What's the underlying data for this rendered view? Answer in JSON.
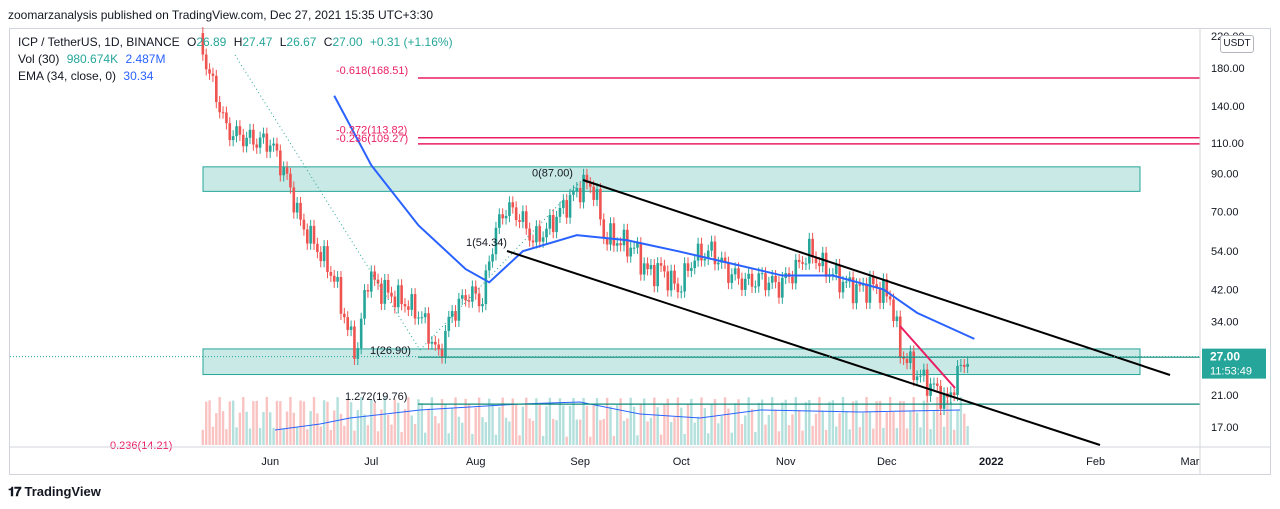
{
  "publisher": "zoomarzanalysis published on TradingView.com, Dec 27, 2021 15:35 UTC+3:30",
  "legend": {
    "symbol": "ICP / TetherUS, 1D, BINANCE",
    "ohlc": {
      "o_label": "O",
      "o": "26.89",
      "h_label": "H",
      "h": "27.47",
      "l_label": "L",
      "l": "26.67",
      "c_label": "C",
      "c": "27.00",
      "chg": "+0.31 (+1.16%)"
    },
    "vol_label": "Vol (30)",
    "vol1": "980.674K",
    "vol2": "2.487M",
    "ema_label": "EMA (34, close, 0)",
    "ema": "30.34"
  },
  "currency": "USDT",
  "price_axis": {
    "ticks": [
      "180.00",
      "140.00",
      "110.00",
      "90.00",
      "70.00",
      "54.00",
      "42.00",
      "34.00",
      "21.00",
      "17.00"
    ],
    "top_label": "220.00",
    "last_price": "27.00",
    "countdown": "11:53:49"
  },
  "time_axis": [
    "Jun",
    "Jul",
    "Aug",
    "Sep",
    "Oct",
    "Nov",
    "Dec",
    "2022",
    "Feb",
    "Mar"
  ],
  "fib_labels": [
    "-0.618(168.51)",
    "-0.272(113.82)",
    "-0.236(109.27)",
    "0(87.00)",
    "1(54.34)",
    "1(26.90)",
    "1.272(19.76)",
    "0.236(14.21)"
  ],
  "colors": {
    "up": "#26a69a",
    "down": "#ef5350",
    "ema": "#2962ff",
    "fib": "#e91e63",
    "zone": "#26a69a",
    "channel": "#000000"
  },
  "footer": "TradingView",
  "chart_data": {
    "type": "candlestick",
    "title": "ICP / TetherUS, 1D, BINANCE",
    "y_scale": "log",
    "ylim": [
      14,
      220
    ],
    "x_range": [
      "2021-05-10",
      "2022-03-10"
    ],
    "series": [
      {
        "name": "ICP/USDT close",
        "values": [
          [
            "2021-05-10",
            220
          ],
          [
            "2021-05-12",
            200
          ],
          [
            "2021-05-15",
            160
          ],
          [
            "2021-05-19",
            120
          ],
          [
            "2021-05-23",
            115
          ],
          [
            "2021-05-27",
            112
          ],
          [
            "2021-06-01",
            110
          ],
          [
            "2021-06-05",
            92
          ],
          [
            "2021-06-10",
            65
          ],
          [
            "2021-06-15",
            55
          ],
          [
            "2021-06-20",
            45
          ],
          [
            "2021-06-24",
            32
          ],
          [
            "2021-06-27",
            28
          ],
          [
            "2021-06-30",
            46
          ],
          [
            "2021-07-04",
            42
          ],
          [
            "2021-07-08",
            40
          ],
          [
            "2021-07-12",
            38
          ],
          [
            "2021-07-16",
            35
          ],
          [
            "2021-07-19",
            30
          ],
          [
            "2021-07-21",
            27
          ],
          [
            "2021-07-25",
            36
          ],
          [
            "2021-07-30",
            41
          ],
          [
            "2021-08-03",
            39
          ],
          [
            "2021-08-07",
            62
          ],
          [
            "2021-08-10",
            72
          ],
          [
            "2021-08-14",
            68
          ],
          [
            "2021-08-18",
            58
          ],
          [
            "2021-08-22",
            62
          ],
          [
            "2021-08-26",
            70
          ],
          [
            "2021-08-30",
            78
          ],
          [
            "2021-09-02",
            84
          ],
          [
            "2021-09-05",
            82
          ],
          [
            "2021-09-08",
            60
          ],
          [
            "2021-09-12",
            58
          ],
          [
            "2021-09-17",
            55
          ],
          [
            "2021-09-21",
            47
          ],
          [
            "2021-09-25",
            48
          ],
          [
            "2021-09-30",
            42
          ],
          [
            "2021-10-05",
            52
          ],
          [
            "2021-10-10",
            54
          ],
          [
            "2021-10-15",
            47
          ],
          [
            "2021-10-20",
            44
          ],
          [
            "2021-10-25",
            45
          ],
          [
            "2021-10-30",
            43
          ],
          [
            "2021-11-04",
            48
          ],
          [
            "2021-11-08",
            54
          ],
          [
            "2021-11-12",
            49
          ],
          [
            "2021-11-18",
            44
          ],
          [
            "2021-11-22",
            42
          ],
          [
            "2021-11-27",
            43
          ],
          [
            "2021-12-02",
            40
          ],
          [
            "2021-12-05",
            28
          ],
          [
            "2021-12-10",
            24
          ],
          [
            "2021-12-15",
            22
          ],
          [
            "2021-12-19",
            20
          ],
          [
            "2021-12-22",
            24
          ],
          [
            "2021-12-25",
            27
          ],
          [
            "2021-12-27",
            27
          ]
        ]
      },
      {
        "name": "EMA (34, close, 0)",
        "values": [
          [
            "2021-06-20",
            150
          ],
          [
            "2021-07-01",
            95
          ],
          [
            "2021-07-15",
            64
          ],
          [
            "2021-07-29",
            48
          ],
          [
            "2021-08-05",
            44
          ],
          [
            "2021-08-15",
            54
          ],
          [
            "2021-08-31",
            60
          ],
          [
            "2021-09-15",
            58
          ],
          [
            "2021-09-30",
            54
          ],
          [
            "2021-10-15",
            50
          ],
          [
            "2021-10-31",
            46
          ],
          [
            "2021-11-15",
            46
          ],
          [
            "2021-11-30",
            42
          ],
          [
            "2021-12-10",
            36
          ],
          [
            "2021-12-27",
            30.34
          ]
        ]
      }
    ],
    "levels": [
      168.51,
      113.82,
      109.27,
      87.0,
      26.9,
      19.76
    ],
    "zones": [
      [
        80,
        94
      ],
      [
        24,
        28.4
      ]
    ]
  }
}
